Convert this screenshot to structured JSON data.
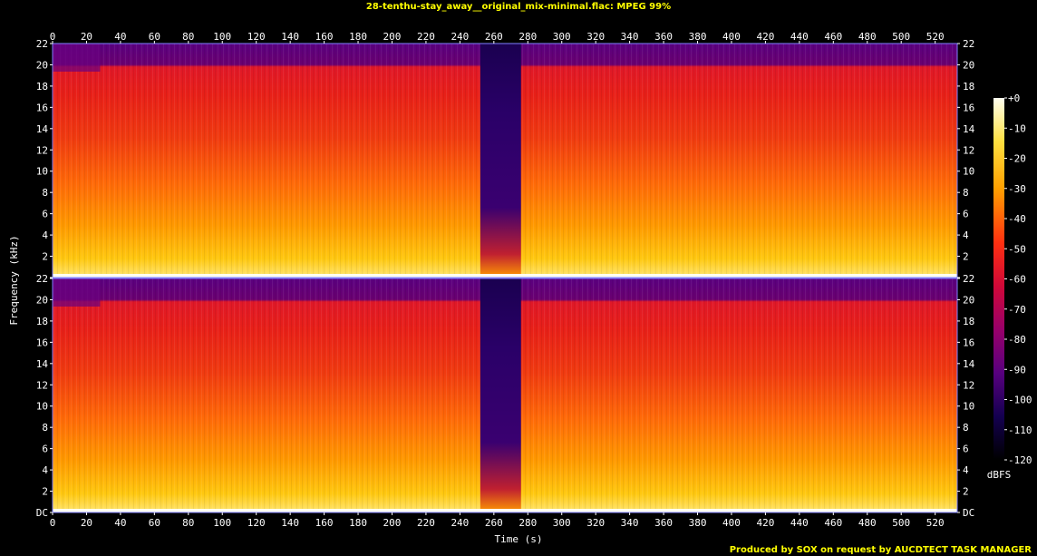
{
  "chart_data": {
    "type": "heatmap",
    "title": "28-tenthu-stay_away__original_mix-minimal.flac: MPEG 99%",
    "xlabel": "Time (s)",
    "ylabel": "Frequency (kHz)",
    "xlim": [
      0,
      533
    ],
    "ylim": [
      0,
      22
    ],
    "x_ticks": [
      "0",
      "20",
      "40",
      "60",
      "80",
      "100",
      "120",
      "140",
      "160",
      "180",
      "200",
      "220",
      "240",
      "260",
      "280",
      "300",
      "320",
      "340",
      "360",
      "380",
      "400",
      "420",
      "440",
      "460",
      "480",
      "500",
      "520"
    ],
    "x_tick_values": [
      0,
      20,
      40,
      60,
      80,
      100,
      120,
      140,
      160,
      180,
      200,
      220,
      240,
      260,
      280,
      300,
      320,
      340,
      360,
      380,
      400,
      420,
      440,
      460,
      480,
      500,
      520
    ],
    "y_ticks": [
      "DC",
      "2",
      "4",
      "6",
      "8",
      "10",
      "12",
      "14",
      "16",
      "18",
      "20",
      "22"
    ],
    "y_tick_values": [
      0,
      2,
      4,
      6,
      8,
      10,
      12,
      14,
      16,
      18,
      20,
      22
    ],
    "channels": 2,
    "colorbar": {
      "label": "dBFS",
      "ticks": [
        "+0",
        "-10",
        "-20",
        "-30",
        "-40",
        "-50",
        "-60",
        "-70",
        "-80",
        "-90",
        "-100",
        "-110",
        "-120"
      ],
      "tick_values": [
        0,
        -10,
        -20,
        -30,
        -40,
        -50,
        -60,
        -70,
        -80,
        -90,
        -100,
        -110,
        -120
      ],
      "range": [
        -120,
        0
      ]
    },
    "colors": {
      "top": "#fffff0",
      "yellow": "#ffd000",
      "orange": "#ff7000",
      "red": "#e81018",
      "magenta": "#a0005c",
      "purple": "#5a007a",
      "navy": "#100040",
      "bottom": "#000000"
    }
  },
  "footer": "Produced by SOX on request by AUCDTECT TASK MANAGER"
}
